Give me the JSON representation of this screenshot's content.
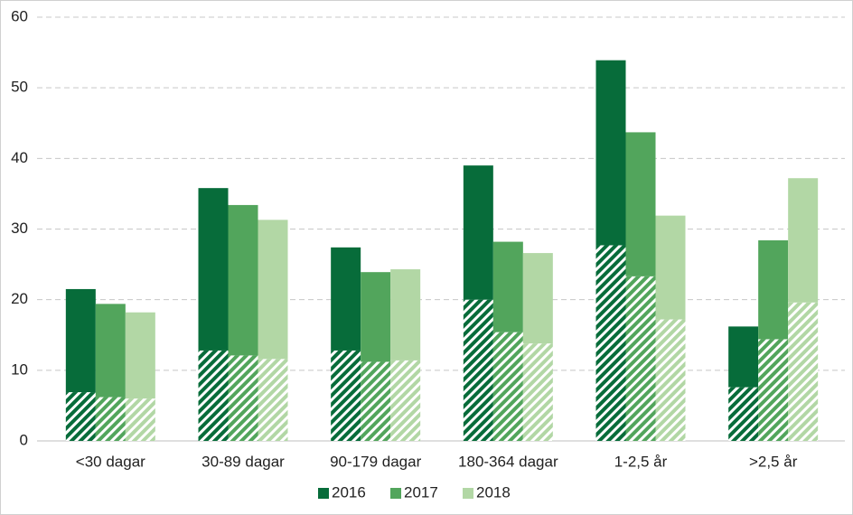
{
  "chart_data": {
    "type": "stacked-grouped-bar",
    "categories": [
      "<30 dagar",
      "30-89 dagar",
      "90-179 dagar",
      "180-364 dagar",
      "1-2,5 år",
      ">2,5 år"
    ],
    "series": [
      {
        "name": "2016",
        "color": "#076c3a",
        "hatched": [
          6.9,
          12.8,
          12.8,
          20.0,
          27.7,
          7.6
        ],
        "values": [
          14.6,
          23.0,
          14.6,
          19.0,
          26.2,
          8.6
        ]
      },
      {
        "name": "2017",
        "color": "#52a55c",
        "hatched": [
          6.2,
          12.1,
          11.2,
          15.4,
          23.3,
          14.4
        ],
        "values": [
          13.2,
          21.3,
          12.7,
          12.8,
          20.4,
          14.0
        ]
      },
      {
        "name": "2018",
        "color": "#b2d7a5",
        "hatched": [
          6.0,
          11.6,
          11.4,
          13.8,
          17.2,
          19.6
        ],
        "values": [
          12.2,
          19.7,
          12.9,
          12.8,
          14.7,
          17.6
        ]
      }
    ],
    "ylim": [
      0,
      60
    ],
    "yticks": [
      0,
      10,
      20,
      30,
      40,
      50,
      60
    ],
    "grid": true,
    "legend": "bottom"
  }
}
